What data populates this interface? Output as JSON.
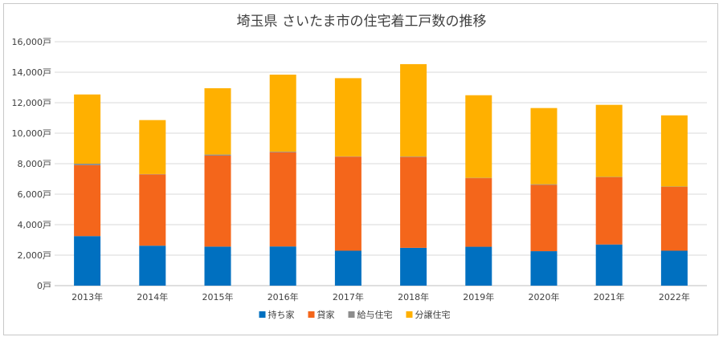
{
  "chart_data": {
    "type": "bar",
    "stacked": true,
    "title": "埼玉県 さいたま市の住宅着工戸数の推移",
    "categories": [
      "2013年",
      "2014年",
      "2015年",
      "2016年",
      "2017年",
      "2018年",
      "2019年",
      "2020年",
      "2021年",
      "2022年"
    ],
    "series": [
      {
        "name": "持ち家",
        "color": "#0070c0",
        "values": [
          3250,
          2620,
          2560,
          2570,
          2290,
          2480,
          2550,
          2260,
          2700,
          2290
        ]
      },
      {
        "name": "貸家",
        "color": "#f4661b",
        "values": [
          4650,
          4680,
          5970,
          6180,
          6170,
          5960,
          4500,
          4350,
          4410,
          4190
        ]
      },
      {
        "name": "給与住宅",
        "color": "#8c8c8c",
        "values": [
          100,
          20,
          70,
          40,
          20,
          30,
          20,
          40,
          20,
          20
        ]
      },
      {
        "name": "分譲住宅",
        "color": "#ffb000",
        "values": [
          4540,
          3540,
          4350,
          5050,
          5130,
          6060,
          5420,
          5000,
          4730,
          4670
        ]
      }
    ],
    "yticks": [
      "0戸",
      "2,000戸",
      "4,000戸",
      "6,000戸",
      "8,000戸",
      "10,000戸",
      "12,000戸",
      "14,000戸",
      "16,000戸"
    ],
    "ylim": [
      0,
      16000
    ],
    "ystep": 2000,
    "grid": true,
    "legend_position": "bottom"
  }
}
